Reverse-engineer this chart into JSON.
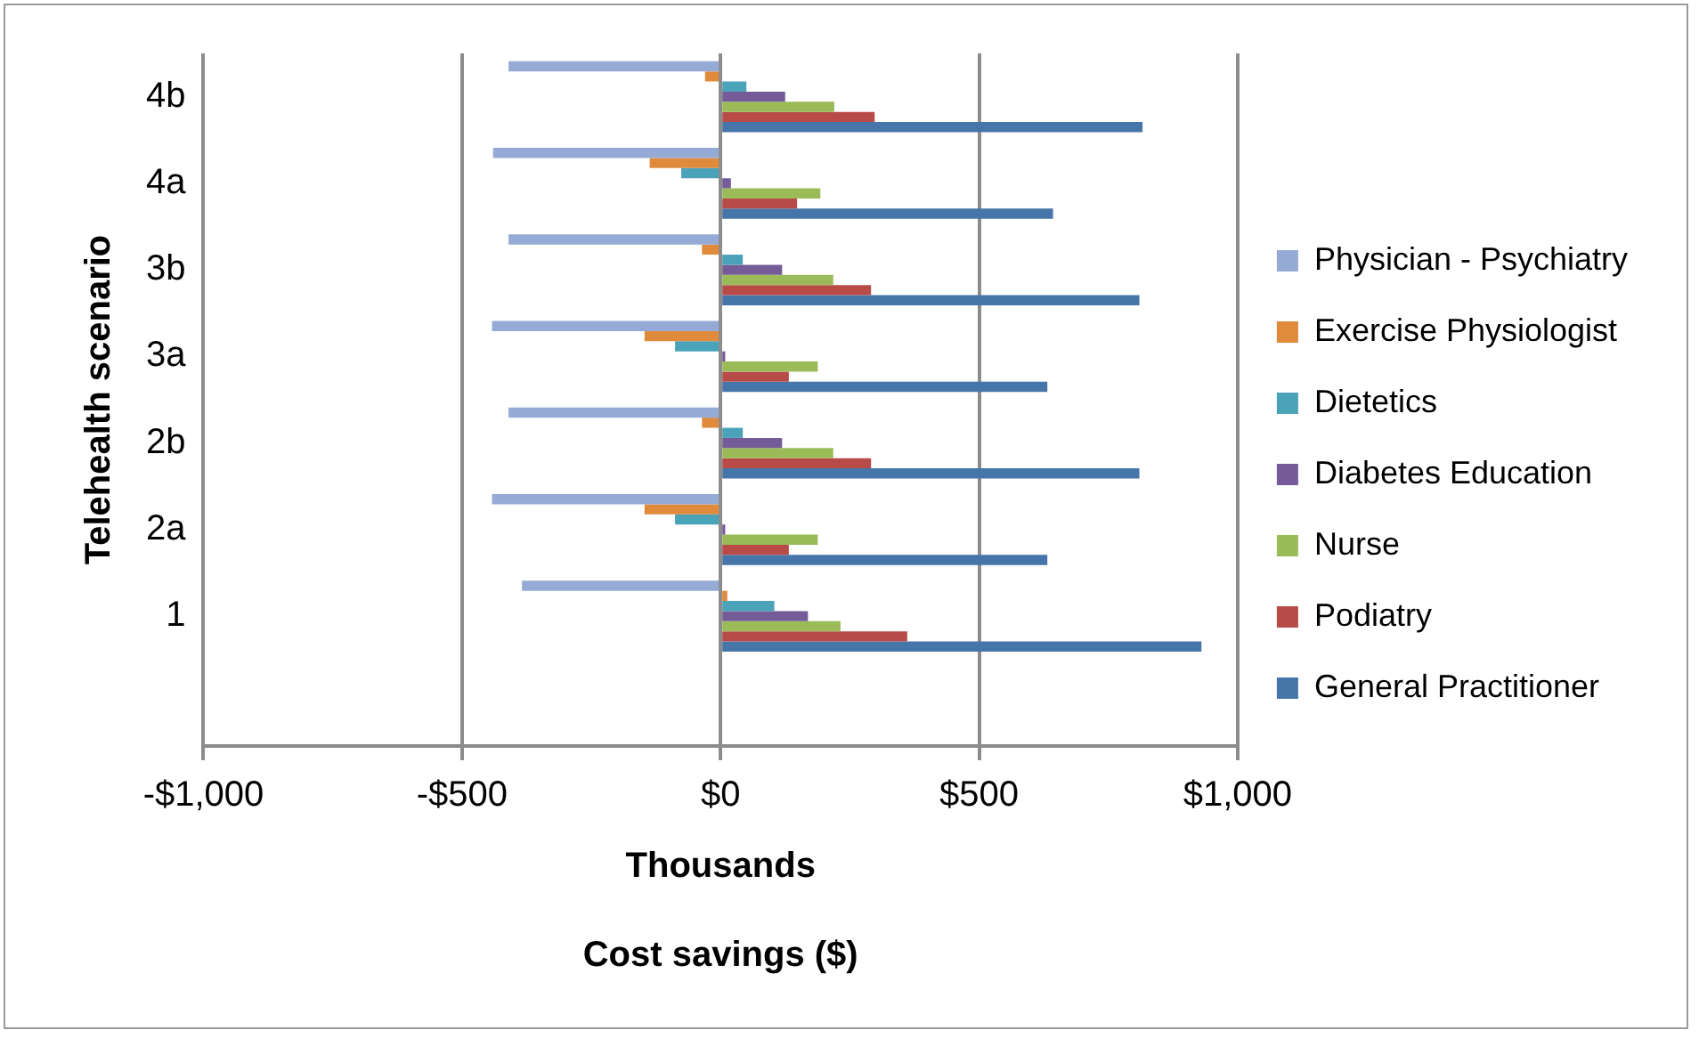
{
  "chart_data": {
    "type": "bar",
    "orientation": "horizontal",
    "xlabel": "Thousands",
    "ylabel": "Telehealth scenario",
    "annotations": [
      "Cost savings ($)"
    ],
    "categories": [
      "4b",
      "4a",
      "3b",
      "3a",
      "2b",
      "2a",
      "1",
      null
    ],
    "series": [
      {
        "name": "Physician - Psychiatry",
        "color": "#95abd5",
        "values": [
          -410,
          -440,
          -410,
          -442,
          -410,
          -442,
          -384,
          null
        ]
      },
      {
        "name": "Exercise Physiologist",
        "color": "#e08a3c",
        "values": [
          -30,
          -137,
          -36,
          -147,
          -36,
          -147,
          13,
          null
        ]
      },
      {
        "name": "Dietetics",
        "color": "#4aa3b8",
        "values": [
          50,
          -76,
          43,
          -88,
          43,
          -88,
          104,
          null
        ]
      },
      {
        "name": "Diabetes Education",
        "color": "#755b98",
        "values": [
          125,
          20,
          119,
          9,
          119,
          9,
          169,
          null
        ]
      },
      {
        "name": "Nurse",
        "color": "#9bbb59",
        "values": [
          220,
          193,
          218,
          188,
          218,
          188,
          232,
          null
        ]
      },
      {
        "name": "Podiatry",
        "color": "#b84b48",
        "values": [
          298,
          148,
          291,
          132,
          291,
          132,
          361,
          null
        ]
      },
      {
        "name": "General Practitioner",
        "color": "#4675aa",
        "values": [
          816,
          643,
          810,
          632,
          810,
          632,
          930,
          null
        ]
      }
    ],
    "xlim": [
      -1000,
      1000
    ],
    "xticks": [
      {
        "value": -1000,
        "label": "-$1,000"
      },
      {
        "value": -500,
        "label": "-$500"
      },
      {
        "value": 0,
        "label": "$0"
      },
      {
        "value": 500,
        "label": "$500"
      },
      {
        "value": 1000,
        "label": "$1,000"
      }
    ],
    "grid": "x",
    "legend": "right"
  }
}
